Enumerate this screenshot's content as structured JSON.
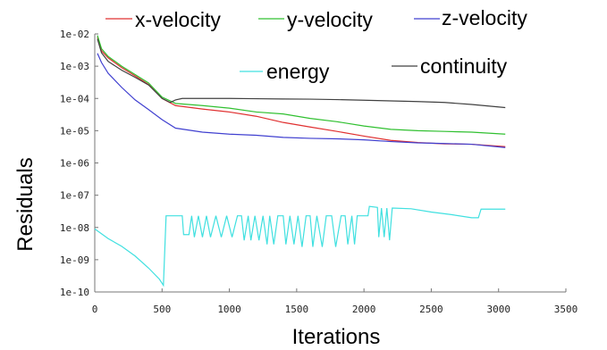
{
  "chart_data": {
    "type": "line",
    "xlabel": "Iterations",
    "ylabel": "Residuals",
    "scale_y": "log",
    "xlim": [
      0,
      3500
    ],
    "ylim": [
      1e-10,
      0.01
    ],
    "x_ticks": [
      "0",
      "500",
      "1000",
      "1500",
      "2000",
      "2500",
      "3000",
      "3500"
    ],
    "y_ticks": [
      "1e-02",
      "1e-03",
      "1e-04",
      "1e-05",
      "1e-06",
      "1e-07",
      "1e-08",
      "1e-09",
      "1e-10"
    ],
    "grid": false,
    "series": [
      {
        "name": "x-velocity",
        "color": "#e03030",
        "points": [
          [
            20,
            0.008
          ],
          [
            50,
            0.003
          ],
          [
            100,
            0.0018
          ],
          [
            200,
            0.0009
          ],
          [
            300,
            0.0005
          ],
          [
            400,
            0.00027
          ],
          [
            500,
            0.0001
          ],
          [
            600,
            6e-05
          ],
          [
            800,
            4.7e-05
          ],
          [
            1000,
            3.8e-05
          ],
          [
            1200,
            2.8e-05
          ],
          [
            1400,
            1.8e-05
          ],
          [
            1600,
            1.3e-05
          ],
          [
            1800,
            9.5e-06
          ],
          [
            2000,
            6.8e-06
          ],
          [
            2200,
            5e-06
          ],
          [
            2400,
            4.3e-06
          ],
          [
            2600,
            3.9e-06
          ],
          [
            2800,
            3.8e-06
          ],
          [
            3050,
            3.2e-06
          ]
        ]
      },
      {
        "name": "y-velocity",
        "color": "#30c030",
        "points": [
          [
            20,
            0.009
          ],
          [
            50,
            0.0035
          ],
          [
            100,
            0.002
          ],
          [
            200,
            0.001
          ],
          [
            300,
            0.00055
          ],
          [
            400,
            0.0003
          ],
          [
            500,
            0.00011
          ],
          [
            600,
            7e-05
          ],
          [
            800,
            6e-05
          ],
          [
            1000,
            5e-05
          ],
          [
            1200,
            3.8e-05
          ],
          [
            1400,
            3.3e-05
          ],
          [
            1600,
            2.4e-05
          ],
          [
            1800,
            1.9e-05
          ],
          [
            2000,
            1.4e-05
          ],
          [
            2200,
            1.1e-05
          ],
          [
            2400,
            1e-05
          ],
          [
            2600,
            9.5e-06
          ],
          [
            2800,
            9e-06
          ],
          [
            3050,
            7.8e-06
          ]
        ]
      },
      {
        "name": "z-velocity",
        "color": "#4040d0",
        "points": [
          [
            20,
            0.0025
          ],
          [
            50,
            0.0013
          ],
          [
            100,
            0.0006
          ],
          [
            200,
            0.00022
          ],
          [
            300,
            9e-05
          ],
          [
            400,
            4.5e-05
          ],
          [
            500,
            2.2e-05
          ],
          [
            600,
            1.2e-05
          ],
          [
            800,
            9e-06
          ],
          [
            1000,
            7.8e-06
          ],
          [
            1200,
            7.2e-06
          ],
          [
            1400,
            6.2e-06
          ],
          [
            1600,
            5.8e-06
          ],
          [
            1800,
            5.6e-06
          ],
          [
            2000,
            5.2e-06
          ],
          [
            2200,
            4.6e-06
          ],
          [
            2400,
            4.2e-06
          ],
          [
            2600,
            4e-06
          ],
          [
            2800,
            3.8e-06
          ],
          [
            3050,
            3e-06
          ]
        ]
      },
      {
        "name": "energy",
        "color": "#40e0e0",
        "points": [
          [
            0,
            9e-09
          ],
          [
            100,
            4.5e-09
          ],
          [
            200,
            2.6e-09
          ],
          [
            300,
            1.3e-09
          ],
          [
            400,
            5.5e-10
          ],
          [
            480,
            2.5e-10
          ],
          [
            510,
            1.6e-10
          ],
          [
            530,
            2.3e-08
          ],
          [
            650,
            2.3e-08
          ],
          [
            660,
            6e-09
          ],
          [
            700,
            6e-09
          ],
          [
            720,
            2.3e-08
          ],
          [
            740,
            5e-09
          ],
          [
            770,
            2.3e-08
          ],
          [
            800,
            5e-09
          ],
          [
            830,
            2.3e-08
          ],
          [
            860,
            5e-09
          ],
          [
            900,
            2.3e-08
          ],
          [
            940,
            5e-09
          ],
          [
            980,
            2.3e-08
          ],
          [
            1020,
            5e-09
          ],
          [
            1060,
            2.3e-08
          ],
          [
            1090,
            2.3e-08
          ],
          [
            1110,
            4e-09
          ],
          [
            1140,
            2.3e-08
          ],
          [
            1160,
            4e-09
          ],
          [
            1190,
            2.3e-08
          ],
          [
            1220,
            4e-09
          ],
          [
            1250,
            2.3e-08
          ],
          [
            1280,
            3e-09
          ],
          [
            1300,
            2.3e-08
          ],
          [
            1330,
            3e-09
          ],
          [
            1360,
            2.3e-08
          ],
          [
            1400,
            2.3e-08
          ],
          [
            1420,
            3e-09
          ],
          [
            1450,
            2.3e-08
          ],
          [
            1480,
            3e-09
          ],
          [
            1510,
            2.3e-08
          ],
          [
            1540,
            2.5e-09
          ],
          [
            1570,
            2.3e-08
          ],
          [
            1600,
            2.3e-08
          ],
          [
            1620,
            2.5e-09
          ],
          [
            1650,
            2.3e-08
          ],
          [
            1690,
            2.5e-09
          ],
          [
            1720,
            2.3e-08
          ],
          [
            1760,
            2.3e-08
          ],
          [
            1790,
            2.5e-09
          ],
          [
            1830,
            2.3e-08
          ],
          [
            1860,
            2.3e-08
          ],
          [
            1880,
            3e-09
          ],
          [
            1910,
            2.3e-08
          ],
          [
            1930,
            3e-09
          ],
          [
            1950,
            2.3e-08
          ],
          [
            2030,
            2.3e-08
          ],
          [
            2040,
            4.5e-08
          ],
          [
            2100,
            4.2e-08
          ],
          [
            2110,
            5e-09
          ],
          [
            2130,
            4e-08
          ],
          [
            2150,
            5e-09
          ],
          [
            2170,
            4e-08
          ],
          [
            2190,
            4e-09
          ],
          [
            2210,
            4e-08
          ],
          [
            2350,
            3.8e-08
          ],
          [
            2500,
            3e-08
          ],
          [
            2650,
            2.5e-08
          ],
          [
            2800,
            2e-08
          ],
          [
            2850,
            2e-08
          ],
          [
            2870,
            3.7e-08
          ],
          [
            3050,
            3.7e-08
          ]
        ]
      },
      {
        "name": "continuity",
        "color": "#404040",
        "points": [
          [
            20,
            0.007
          ],
          [
            50,
            0.0026
          ],
          [
            100,
            0.0014
          ],
          [
            200,
            0.00075
          ],
          [
            300,
            0.00045
          ],
          [
            400,
            0.00026
          ],
          [
            500,
            0.0001
          ],
          [
            560,
            7.5e-05
          ],
          [
            600,
            9e-05
          ],
          [
            650,
            0.0001
          ],
          [
            800,
            0.0001
          ],
          [
            1000,
            0.0001
          ],
          [
            1200,
            9.8e-05
          ],
          [
            1400,
            9.6e-05
          ],
          [
            1600,
            9.5e-05
          ],
          [
            1800,
            9.2e-05
          ],
          [
            2000,
            8.8e-05
          ],
          [
            2200,
            8.4e-05
          ],
          [
            2400,
            8e-05
          ],
          [
            2600,
            7.5e-05
          ],
          [
            2800,
            6.5e-05
          ],
          [
            3050,
            5.2e-05
          ]
        ]
      }
    ],
    "legend": [
      "x-velocity",
      "y-velocity",
      "z-velocity",
      "energy",
      "continuity"
    ]
  }
}
